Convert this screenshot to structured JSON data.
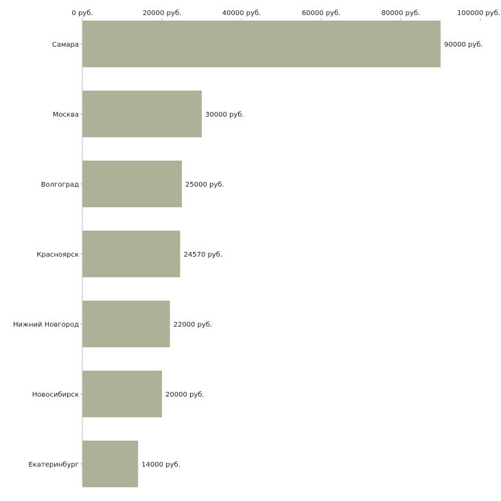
{
  "chart_data": {
    "type": "bar",
    "orientation": "horizontal",
    "title": "",
    "xlabel": "",
    "ylabel": "",
    "unit": "руб.",
    "xlim": [
      0,
      100000
    ],
    "x_ticks": [
      0,
      20000,
      40000,
      60000,
      80000,
      100000
    ],
    "x_tick_labels": [
      "0 руб.",
      "20000 руб.",
      "40000 руб.",
      "60000 руб.",
      "80000 руб.",
      "100000 руб."
    ],
    "categories": [
      "Самара",
      "Москва",
      "Волгоград",
      "Красноярск",
      "Нижний Новгород",
      "Новосибирск",
      "Екатеринбург"
    ],
    "values": [
      90000,
      30000,
      25000,
      24570,
      22000,
      20000,
      14000
    ],
    "value_labels": [
      "90000 руб.",
      "30000 руб.",
      "25000 руб.",
      "24570 руб.",
      "22000 руб.",
      "20000 руб.",
      "14000 руб."
    ],
    "bar_color": "#acb297",
    "axis_color": "#bbbbbb",
    "grid": false,
    "legend": "none"
  }
}
